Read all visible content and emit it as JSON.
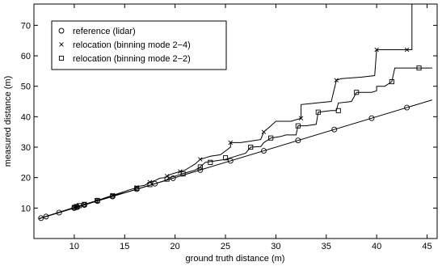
{
  "chart_data": {
    "type": "line",
    "title": "",
    "xlabel": "ground truth distance (m)",
    "ylabel": "measured distance (m)",
    "xlim": [
      6,
      46
    ],
    "ylim": [
      0,
      77
    ],
    "x_ticks": [
      10,
      15,
      20,
      25,
      30,
      35,
      40,
      45
    ],
    "y_ticks": [
      10,
      20,
      30,
      40,
      50,
      60,
      70
    ],
    "grid": false,
    "legend_position": "top-left",
    "series": [
      {
        "name": "reference (lidar)",
        "marker": "circle",
        "line": [
          [
            6.5,
            6.5
          ],
          [
            45.5,
            45.5
          ]
        ],
        "marker_points": [
          [
            6.7,
            6.7
          ],
          [
            7.2,
            7.2
          ],
          [
            8.5,
            8.5
          ],
          [
            10.0,
            10.0
          ],
          [
            10.3,
            10.3
          ],
          [
            11.0,
            11.0
          ],
          [
            12.3,
            12.3
          ],
          [
            13.8,
            13.8
          ],
          [
            16.2,
            16.2
          ],
          [
            18.0,
            18.0
          ],
          [
            19.8,
            19.8
          ],
          [
            22.5,
            22.5
          ],
          [
            25.5,
            25.5
          ],
          [
            28.8,
            28.8
          ],
          [
            32.2,
            32.2
          ],
          [
            35.8,
            35.8
          ],
          [
            39.5,
            39.5
          ],
          [
            43.0,
            43.0
          ]
        ]
      },
      {
        "name": "relocation (binning mode 2−4)",
        "marker": "x",
        "line": [
          [
            6.5,
            6.5
          ],
          [
            10.0,
            10.2
          ],
          [
            12.0,
            12.2
          ],
          [
            14.0,
            14.4
          ],
          [
            15.5,
            16.0
          ],
          [
            16.0,
            16.5
          ],
          [
            16.5,
            17.2
          ],
          [
            17.0,
            17.5
          ],
          [
            17.5,
            18.5
          ],
          [
            18.0,
            19.0
          ],
          [
            18.5,
            19.8
          ],
          [
            19.0,
            20.0
          ],
          [
            19.5,
            21.0
          ],
          [
            20.0,
            21.5
          ],
          [
            20.5,
            22.0
          ],
          [
            21.0,
            22.5
          ],
          [
            21.5,
            23.5
          ],
          [
            22.0,
            24.5
          ],
          [
            22.5,
            26.0
          ],
          [
            23.0,
            26.5
          ],
          [
            23.5,
            27.0
          ],
          [
            24.5,
            27.5
          ],
          [
            25.5,
            30.0
          ],
          [
            25.5,
            31.5
          ],
          [
            26.5,
            31.5
          ],
          [
            27.5,
            32.0
          ],
          [
            28.5,
            32.5
          ],
          [
            28.8,
            35.0
          ],
          [
            29.5,
            37.0
          ],
          [
            30.0,
            38.5
          ],
          [
            31.5,
            38.5
          ],
          [
            32.5,
            39.5
          ],
          [
            32.5,
            44.0
          ],
          [
            34.0,
            44.5
          ],
          [
            35.5,
            45.0
          ],
          [
            36.0,
            52.0
          ],
          [
            36.5,
            52.5
          ],
          [
            38.5,
            53.0
          ],
          [
            39.8,
            53.5
          ],
          [
            40.0,
            62.0
          ],
          [
            43.5,
            62.0
          ],
          [
            43.5,
            77.0
          ],
          [
            45.5,
            77.0
          ]
        ],
        "marker_points": [
          [
            10.0,
            10.2
          ],
          [
            10.3,
            10.5
          ],
          [
            11.0,
            11.2
          ],
          [
            12.2,
            12.5
          ],
          [
            13.8,
            14.2
          ],
          [
            16.2,
            16.8
          ],
          [
            17.5,
            18.5
          ],
          [
            19.2,
            20.5
          ],
          [
            20.5,
            22.0
          ],
          [
            22.5,
            26.0
          ],
          [
            25.5,
            31.5
          ],
          [
            28.8,
            35.0
          ],
          [
            32.5,
            39.5
          ],
          [
            36.0,
            52.0
          ],
          [
            40.0,
            62.0
          ],
          [
            43.0,
            62.0
          ]
        ]
      },
      {
        "name": "relocation (binning mode 2−2)",
        "marker": "square",
        "line": [
          [
            6.5,
            6.5
          ],
          [
            10.0,
            10.2
          ],
          [
            12.0,
            12.2
          ],
          [
            14.0,
            14.2
          ],
          [
            15.5,
            15.5
          ],
          [
            16.0,
            16.0
          ],
          [
            16.5,
            16.5
          ],
          [
            17.0,
            17.0
          ],
          [
            17.5,
            17.5
          ],
          [
            18.0,
            18.0
          ],
          [
            18.5,
            18.5
          ],
          [
            19.0,
            19.0
          ],
          [
            19.5,
            20.0
          ],
          [
            20.0,
            20.5
          ],
          [
            20.5,
            21.0
          ],
          [
            21.0,
            21.5
          ],
          [
            21.5,
            22.0
          ],
          [
            22.0,
            22.5
          ],
          [
            22.5,
            23.5
          ],
          [
            23.0,
            25.0
          ],
          [
            24.0,
            25.5
          ],
          [
            25.0,
            26.0
          ],
          [
            25.5,
            26.5
          ],
          [
            26.0,
            27.0
          ],
          [
            27.0,
            28.0
          ],
          [
            27.5,
            30.0
          ],
          [
            28.5,
            30.2
          ],
          [
            28.8,
            31.5
          ],
          [
            29.5,
            33.0
          ],
          [
            30.5,
            33.5
          ],
          [
            31.0,
            34.0
          ],
          [
            32.0,
            34.0
          ],
          [
            32.2,
            37.0
          ],
          [
            33.0,
            37.0
          ],
          [
            34.0,
            37.5
          ],
          [
            34.2,
            41.5
          ],
          [
            35.5,
            42.0
          ],
          [
            36.0,
            42.0
          ],
          [
            36.2,
            44.5
          ],
          [
            37.5,
            45.0
          ],
          [
            38.0,
            48.0
          ],
          [
            39.5,
            48.0
          ],
          [
            40.0,
            48.5
          ],
          [
            40.0,
            50.0
          ],
          [
            40.8,
            50.0
          ],
          [
            41.5,
            51.5
          ],
          [
            41.8,
            56.0
          ],
          [
            45.5,
            56.0
          ]
        ],
        "marker_points": [
          [
            10.0,
            10.2
          ],
          [
            10.2,
            10.5
          ],
          [
            10.5,
            10.8
          ],
          [
            11.0,
            11.2
          ],
          [
            12.3,
            12.5
          ],
          [
            13.8,
            14.0
          ],
          [
            16.2,
            16.5
          ],
          [
            17.5,
            17.7
          ],
          [
            19.2,
            19.5
          ],
          [
            20.8,
            21.2
          ],
          [
            22.5,
            23.5
          ],
          [
            23.5,
            25.0
          ],
          [
            25.0,
            26.5
          ],
          [
            27.5,
            30.0
          ],
          [
            29.5,
            33.0
          ],
          [
            32.2,
            37.0
          ],
          [
            34.2,
            41.5
          ],
          [
            36.2,
            42.0
          ],
          [
            38.0,
            48.0
          ],
          [
            41.5,
            51.5
          ],
          [
            44.2,
            56.0
          ]
        ]
      }
    ]
  }
}
